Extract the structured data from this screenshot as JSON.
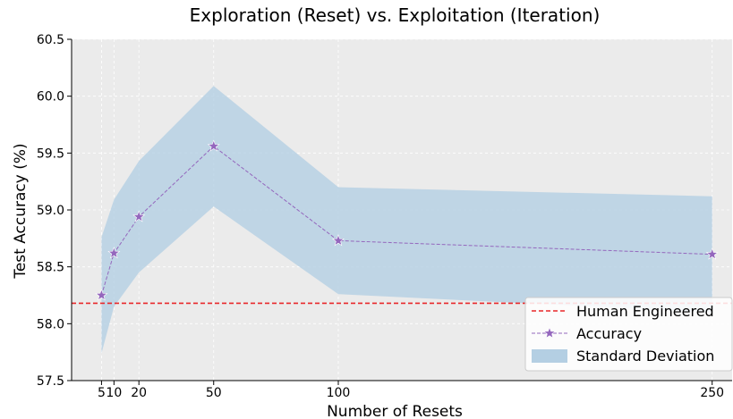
{
  "chart_data": {
    "type": "line",
    "title": "Exploration (Reset) vs. Exploitation (Iteration)",
    "xlabel": "Number of Resets",
    "ylabel": "Test Accuracy (%)",
    "x_ticks": [
      5,
      10,
      20,
      50,
      100,
      250
    ],
    "x_tick_labels": [
      "5",
      "10",
      "20",
      "50",
      "100",
      "250"
    ],
    "y_ticks": [
      57.5,
      58.0,
      58.5,
      59.0,
      59.5,
      60.0,
      60.5
    ],
    "y_tick_labels": [
      "57.5",
      "58.0",
      "58.5",
      "59.0",
      "59.5",
      "60.0",
      "60.5"
    ],
    "xlim": [
      -7,
      258
    ],
    "ylim": [
      57.5,
      60.5
    ],
    "grid": true,
    "legend_position": "bottom-right",
    "series": [
      {
        "name": "Accuracy",
        "kind": "line-markers",
        "marker": "star",
        "color": "#9467bd",
        "line_style": "dashed",
        "x": [
          5,
          10,
          20,
          50,
          100,
          250
        ],
        "values": [
          58.25,
          58.62,
          58.94,
          59.56,
          58.73,
          58.61
        ]
      },
      {
        "name": "Standard Deviation",
        "kind": "band",
        "color": "#b4cfe3",
        "x": [
          5,
          10,
          20,
          50,
          100,
          250
        ],
        "upper": [
          58.76,
          59.09,
          59.43,
          60.09,
          59.2,
          59.12
        ],
        "lower": [
          57.74,
          58.15,
          58.45,
          59.03,
          58.26,
          58.1
        ]
      },
      {
        "name": "Human Engineered",
        "kind": "hline",
        "color": "#e8272a",
        "line_style": "dashed",
        "y": 58.18
      }
    ],
    "legend": [
      "Human Engineered",
      "Accuracy",
      "Standard Deviation"
    ]
  }
}
